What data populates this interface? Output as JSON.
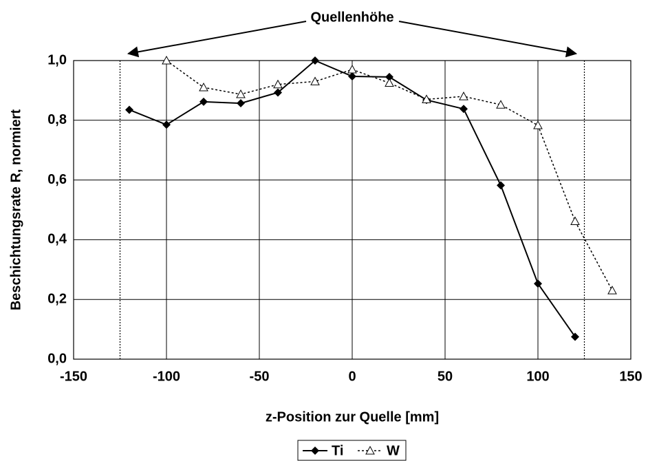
{
  "chart_data": {
    "type": "line",
    "xlabel": "z-Position zur Quelle [mm]",
    "ylabel": "Beschichtungsrate R, normiert",
    "annotation": {
      "text": "Quellenhöhe",
      "x": [
        -125,
        125
      ]
    },
    "x": [
      -120,
      -100,
      -80,
      -60,
      -40,
      -20,
      0,
      20,
      40,
      60,
      80,
      100,
      120,
      140
    ],
    "series": [
      {
        "name": "Ti",
        "color": "#000000",
        "marker": "diamond",
        "dashed": false,
        "values": [
          0.835,
          0.785,
          0.862,
          0.857,
          0.893,
          1.0,
          0.947,
          0.945,
          0.868,
          0.838,
          0.582,
          0.253,
          0.075,
          null
        ]
      },
      {
        "name": "W",
        "color": "#000000",
        "marker": "triangle",
        "dashed": true,
        "values": [
          null,
          1.0,
          0.91,
          0.887,
          0.92,
          0.93,
          0.97,
          0.925,
          0.87,
          0.88,
          0.852,
          0.783,
          0.462,
          0.23
        ]
      }
    ],
    "xlim": [
      -150,
      150
    ],
    "xticks": [
      -150,
      -100,
      -50,
      0,
      50,
      100,
      150
    ],
    "ylim": [
      0,
      1
    ],
    "yticks": [
      {
        "value": 0,
        "label": "0,0"
      },
      {
        "value": 0.2,
        "label": "0,2"
      },
      {
        "value": 0.4,
        "label": "0,4"
      },
      {
        "value": 0.6,
        "label": "0,6"
      },
      {
        "value": 0.8,
        "label": "0,8"
      },
      {
        "value": 1,
        "label": "1,0"
      }
    ],
    "grid": true,
    "legend": "bottom"
  }
}
